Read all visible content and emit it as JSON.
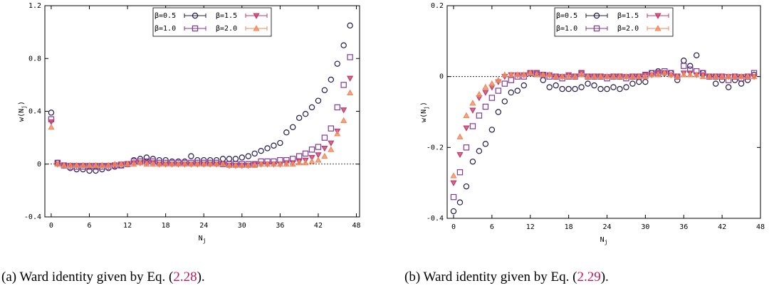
{
  "chart_data": [
    {
      "type": "scatter",
      "caption": {
        "prefix": "(a) Ward identity given by Eq. (",
        "ref": "2.28",
        "suffix": ")."
      },
      "xlabel": {
        "text": "N",
        "sub": "j"
      },
      "ylabel": {
        "text": "w(N",
        "sub": "j",
        "end": ")"
      },
      "xlim": [
        -1,
        48.5
      ],
      "xticks": [
        0,
        6,
        12,
        18,
        24,
        30,
        36,
        42,
        48
      ],
      "ylim": [
        -0.4,
        1.2
      ],
      "yticks": [
        -0.4,
        0,
        0.4,
        0.8,
        1.2
      ],
      "x": [
        0,
        1,
        2,
        3,
        4,
        5,
        6,
        7,
        8,
        9,
        10,
        11,
        12,
        13,
        14,
        15,
        16,
        17,
        18,
        19,
        20,
        21,
        22,
        23,
        24,
        25,
        26,
        27,
        28,
        29,
        30,
        31,
        32,
        33,
        34,
        35,
        36,
        37,
        38,
        39,
        40,
        41,
        42,
        43,
        44,
        45,
        46,
        47
      ],
      "legend": "upper center",
      "series": [
        {
          "name": "β=0.5",
          "color": "#1f1a4d",
          "marker": "open-circle",
          "values": [
            0.39,
            0.01,
            -0.01,
            -0.03,
            -0.04,
            -0.04,
            -0.05,
            -0.05,
            -0.04,
            -0.03,
            -0.02,
            -0.01,
            0,
            0.03,
            0.04,
            0.05,
            0.04,
            0.03,
            0.03,
            0.02,
            0.02,
            0.02,
            0.06,
            0.03,
            0.03,
            0.03,
            0.03,
            0.04,
            0.04,
            0.04,
            0.05,
            0.06,
            0.08,
            0.1,
            0.12,
            0.14,
            0.16,
            0.24,
            0.28,
            0.35,
            0.38,
            0.43,
            0.48,
            0.56,
            0.64,
            0.76,
            0.9,
            1.05
          ]
        },
        {
          "name": "β=1.0",
          "color": "#7e3a96",
          "marker": "open-square",
          "values": [
            0.34,
            0.01,
            -0.01,
            -0.02,
            -0.02,
            -0.02,
            -0.02,
            -0.02,
            -0.02,
            -0.02,
            -0.01,
            -0.01,
            0,
            0.02,
            0.02,
            0.02,
            0.02,
            0.01,
            0.01,
            0.01,
            0.01,
            0.01,
            0.01,
            0.01,
            0.01,
            0.01,
            0.01,
            0,
            0,
            0,
            0,
            0,
            0,
            0.02,
            0.02,
            0.02,
            0.03,
            0.03,
            0.04,
            0.06,
            0.08,
            0.11,
            0.13,
            0.2,
            0.27,
            0.43,
            0.6,
            0.81
          ]
        },
        {
          "name": "β=1.5",
          "color": "#c03a6b",
          "marker": "filled-triangle-down",
          "values": [
            0.32,
            0,
            -0.01,
            -0.01,
            -0.01,
            -0.01,
            -0.01,
            -0.01,
            -0.01,
            -0.01,
            -0.01,
            0,
            0,
            0.01,
            0.01,
            0.01,
            0.01,
            0,
            0,
            0,
            0,
            0,
            0,
            0,
            0,
            0,
            0,
            0,
            -0.01,
            -0.01,
            -0.01,
            -0.01,
            0,
            0,
            0,
            0,
            0,
            0.01,
            0.01,
            0.02,
            0.03,
            0.05,
            0.07,
            0.12,
            0.16,
            0.25,
            0.41,
            0.65
          ]
        },
        {
          "name": "β=2.0",
          "color": "#f08a5d",
          "marker": "filled-triangle-up",
          "values": [
            0.28,
            0,
            -0.01,
            -0.01,
            -0.01,
            -0.01,
            -0.01,
            -0.01,
            -0.01,
            -0.01,
            0,
            0,
            0,
            0,
            0.01,
            0,
            0,
            0,
            0,
            0,
            0,
            0,
            0,
            0,
            0,
            0,
            0,
            0,
            -0.01,
            -0.01,
            -0.01,
            -0.01,
            -0.01,
            0,
            0,
            0,
            0,
            0,
            0,
            0.01,
            0.01,
            0.02,
            0.03,
            0.06,
            0.11,
            0.23,
            0.33,
            0.54
          ]
        }
      ]
    },
    {
      "type": "scatter",
      "caption": {
        "prefix": "(b) Ward identity given by Eq. (",
        "ref": "2.29",
        "suffix": ")."
      },
      "xlabel": {
        "text": "N",
        "sub": "j"
      },
      "ylabel": {
        "text": "w(N",
        "sub": "j",
        "end": ")"
      },
      "xlim": [
        -1,
        48
      ],
      "xticks": [
        0,
        6,
        12,
        18,
        24,
        30,
        36,
        42,
        48
      ],
      "ylim": [
        -0.4,
        0.2
      ],
      "yticks": [
        -0.4,
        -0.2,
        0,
        0.2
      ],
      "x": [
        0,
        1,
        2,
        3,
        4,
        5,
        6,
        7,
        8,
        9,
        10,
        11,
        12,
        13,
        14,
        15,
        16,
        17,
        18,
        19,
        20,
        21,
        22,
        23,
        24,
        25,
        26,
        27,
        28,
        29,
        30,
        31,
        32,
        33,
        34,
        35,
        36,
        37,
        38,
        39,
        40,
        41,
        42,
        43,
        44,
        45,
        46,
        47
      ],
      "legend": "upper center",
      "series": [
        {
          "name": "β=0.5",
          "color": "#1f1a4d",
          "marker": "open-circle",
          "values": [
            -0.38,
            -0.355,
            -0.31,
            -0.24,
            -0.21,
            -0.19,
            -0.15,
            -0.1,
            -0.07,
            -0.045,
            -0.04,
            -0.025,
            0.01,
            0.01,
            -0.01,
            -0.03,
            -0.025,
            -0.035,
            -0.035,
            -0.035,
            -0.03,
            -0.02,
            -0.025,
            -0.035,
            -0.035,
            -0.03,
            -0.035,
            -0.03,
            -0.02,
            -0.015,
            -0.015,
            0.01,
            0.015,
            0.01,
            0.01,
            -0.01,
            0.045,
            0.03,
            0.06,
            0.01,
            0,
            -0.02,
            -0.01,
            -0.03,
            -0.01,
            -0.02,
            -0.01,
            0.005
          ]
        },
        {
          "name": "β=1.0",
          "color": "#7e3a96",
          "marker": "open-square",
          "values": [
            -0.34,
            -0.27,
            -0.2,
            -0.14,
            -0.11,
            -0.085,
            -0.06,
            -0.04,
            -0.02,
            -0.01,
            0,
            0,
            0.01,
            0.01,
            0.005,
            0,
            0,
            -0.005,
            0,
            0,
            0.01,
            0,
            0,
            0,
            -0.005,
            0,
            0,
            -0.005,
            0,
            0,
            0.005,
            0.01,
            0.01,
            0.015,
            0.01,
            0,
            0.03,
            0.02,
            0.015,
            0.01,
            0,
            0,
            0,
            -0.01,
            0,
            -0.005,
            0,
            0.01
          ]
        },
        {
          "name": "β=1.5",
          "color": "#c03a6b",
          "marker": "filled-triangle-down",
          "values": [
            -0.3,
            -0.22,
            -0.145,
            -0.095,
            -0.06,
            -0.045,
            -0.03,
            -0.015,
            0,
            0.005,
            0.005,
            0.005,
            0.01,
            0.01,
            0.005,
            0.005,
            0,
            0,
            0.005,
            0,
            0.01,
            0,
            0,
            0,
            0,
            0,
            0,
            0,
            0,
            0,
            0.005,
            0.005,
            0.01,
            0.01,
            0.005,
            0,
            0.01,
            0.01,
            0.005,
            0.005,
            0,
            0,
            0,
            0,
            0,
            0,
            0,
            0
          ]
        },
        {
          "name": "β=2.0",
          "color": "#f08a5d",
          "marker": "filled-triangle-up",
          "values": [
            -0.28,
            -0.17,
            -0.11,
            -0.075,
            -0.05,
            -0.03,
            -0.02,
            -0.01,
            0.005,
            0.005,
            0.005,
            0.005,
            0.01,
            0.005,
            0.005,
            0.005,
            0,
            0,
            0,
            0,
            0.005,
            0,
            0,
            0,
            0,
            0,
            0,
            0,
            0,
            0,
            0,
            0.005,
            0.005,
            0.01,
            0.005,
            0,
            0.005,
            0.005,
            0.005,
            0,
            0,
            0,
            0,
            0,
            0,
            0,
            0,
            0
          ]
        }
      ]
    }
  ]
}
